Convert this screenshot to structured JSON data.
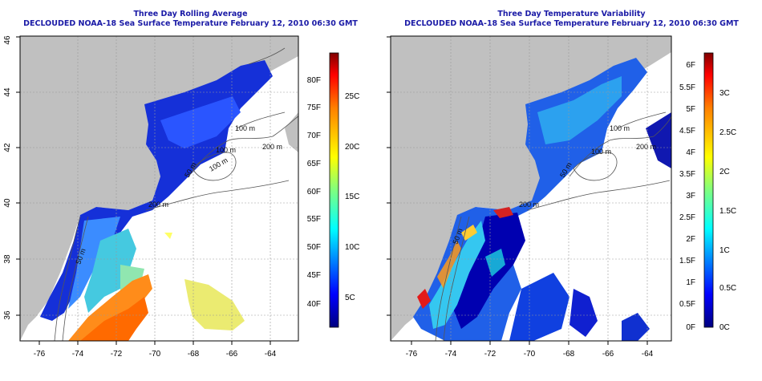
{
  "colors": {
    "land": "#c0c0c0",
    "title": "#1a1aa6",
    "scale": [
      "#00007f",
      "#0000ff",
      "#007fff",
      "#00ffff",
      "#7fff7f",
      "#ffff00",
      "#ff7f00",
      "#ff0000",
      "#7f0000"
    ]
  },
  "axes": {
    "x_ticks": [
      "-76",
      "-74",
      "-72",
      "-70",
      "-68",
      "-66",
      "-64"
    ],
    "y_ticks": [
      "36",
      "38",
      "40",
      "42",
      "44",
      "46"
    ]
  },
  "left": {
    "title_line1": "Three Day Rolling Average",
    "title_line2": "DECLOUDED NOAA-18 Sea Surface Temperature February 12, 2010 06:30 GMT",
    "colorbar_f": [
      "80F",
      "75F",
      "70F",
      "65F",
      "60F",
      "55F",
      "50F",
      "45F",
      "40F"
    ],
    "colorbar_c": [
      "25C",
      "20C",
      "15C",
      "10C",
      "5C"
    ],
    "contours": [
      "100 m",
      "200 m",
      "100 m",
      "200 m",
      "50 m",
      "50 m",
      "100 m"
    ]
  },
  "right": {
    "title_line1": "Three Day Temperature Variability",
    "title_line2": "DECLOUDED NOAA-18 Sea Surface Temperature February 12, 2010 06:30 GMT",
    "colorbar_f": [
      "6F",
      "5.5F",
      "5F",
      "4.5F",
      "4F",
      "3.5F",
      "3F",
      "2.5F",
      "2F",
      "1.5F",
      "1F",
      "0.5F",
      "0F"
    ],
    "colorbar_c": [
      "3C",
      "2.5C",
      "2C",
      "1.5C",
      "1C",
      "0.5C",
      "0C"
    ],
    "contours": [
      "100 m",
      "200 m",
      "100 m",
      "50 m",
      "200 m",
      "50 m"
    ]
  }
}
